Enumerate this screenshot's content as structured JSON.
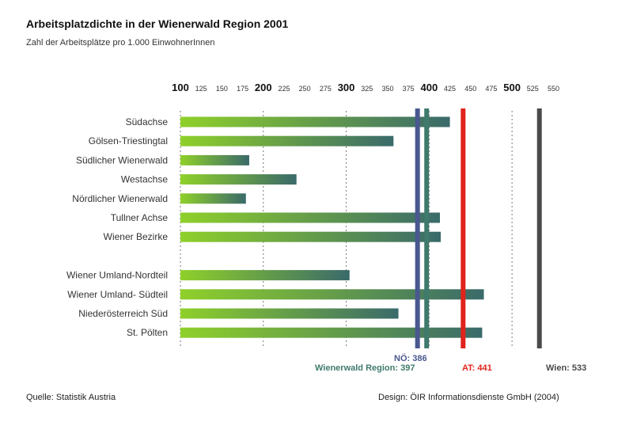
{
  "chart_data": {
    "type": "bar",
    "orientation": "horizontal",
    "title": "Arbeitsplatzdichte in der Wienerwald Region 2001",
    "subtitle": "Zahl der Arbeitsplätze pro 1.000 EinwohnerInnen",
    "x_ticks_major": [
      "100",
      "200",
      "300",
      "400",
      "500"
    ],
    "x_ticks_minor": [
      "125",
      "150",
      "175",
      "225",
      "250",
      "275",
      "325",
      "350",
      "375",
      "425",
      "450",
      "475",
      "525",
      "550"
    ],
    "xlim": [
      100,
      560
    ],
    "grid": true,
    "groups": [
      {
        "categories": [
          "Südachse",
          "Gölsen-Triestingtal",
          "Südlicher Wienerwald",
          "Westachse",
          "Nördlicher Wienerwald",
          "Tullner Achse",
          "Wiener Bezirke"
        ],
        "values": [
          425,
          357,
          183,
          240,
          179,
          413,
          414
        ]
      },
      {
        "categories": [
          "Wiener Umland-Nordteil",
          "Wiener Umland- Südteil",
          "Niederösterreich Süd",
          "St. Pölten"
        ],
        "values": [
          304,
          466,
          363,
          464
        ]
      }
    ],
    "reference_lines": [
      {
        "label": "NÖ: 386",
        "value": 386,
        "color": "#4a5890"
      },
      {
        "label": "Wienerwald Region: 397",
        "value": 397,
        "color": "#3f7a6c"
      },
      {
        "label": "AT: 441",
        "value": 441,
        "color": "#e0231b"
      },
      {
        "label": "Wien: 533",
        "value": 533,
        "color": "#4a4a4a"
      }
    ],
    "colors": {
      "bar_start": "#8fd02a",
      "bar_end": "#3a6a6a",
      "grid": "#777777"
    }
  },
  "footer": {
    "source": "Quelle: Statistik Austria",
    "credit": "Design: ÖIR Informationsdienste GmbH (2004)"
  }
}
